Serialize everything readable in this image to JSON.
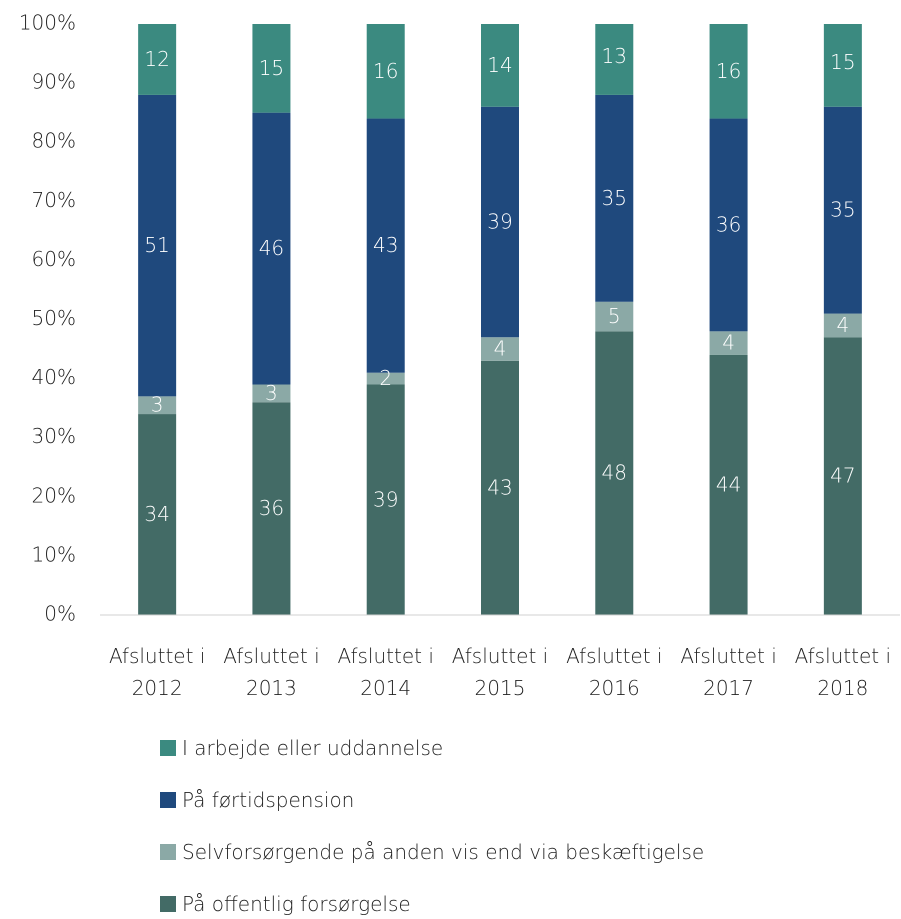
{
  "chart_data": {
    "type": "stacked_bar",
    "categories": [
      "Afsluttet i 2012",
      "Afsluttet i 2013",
      "Afsluttet i 2014",
      "Afsluttet i 2015",
      "Afsluttet i 2016",
      "Afsluttet i 2017",
      "Afsluttet i 2018"
    ],
    "series": [
      {
        "name": "På offentlig forsørgelse",
        "color": "#436b66",
        "values": [
          34,
          36,
          39,
          43,
          48,
          44,
          47
        ]
      },
      {
        "name": "Selvforsørgende på anden vis end via beskæftigelse",
        "color": "#8ba9a6",
        "values": [
          3,
          3,
          2,
          4,
          5,
          4,
          4
        ]
      },
      {
        "name": "På førtidspension",
        "color": "#1f497d",
        "values": [
          51,
          46,
          43,
          39,
          35,
          36,
          35
        ]
      },
      {
        "name": "I arbejde eller uddannelse",
        "color": "#3b8a80",
        "values": [
          12,
          15,
          16,
          14,
          13,
          16,
          15
        ]
      }
    ],
    "ylim": [
      0,
      100
    ],
    "yticks": [
      {
        "value": 0,
        "label": "0%"
      },
      {
        "value": 10,
        "label": "10%"
      },
      {
        "value": 20,
        "label": "20%"
      },
      {
        "value": 30,
        "label": "30%"
      },
      {
        "value": 40,
        "label": "40%"
      },
      {
        "value": 50,
        "label": "50%"
      },
      {
        "value": 60,
        "label": "60%"
      },
      {
        "value": 70,
        "label": "70%"
      },
      {
        "value": 80,
        "label": "80%"
      },
      {
        "value": 90,
        "label": "90%"
      },
      {
        "value": 100,
        "label": "100%"
      }
    ],
    "grid": false,
    "legend": "bottom"
  }
}
